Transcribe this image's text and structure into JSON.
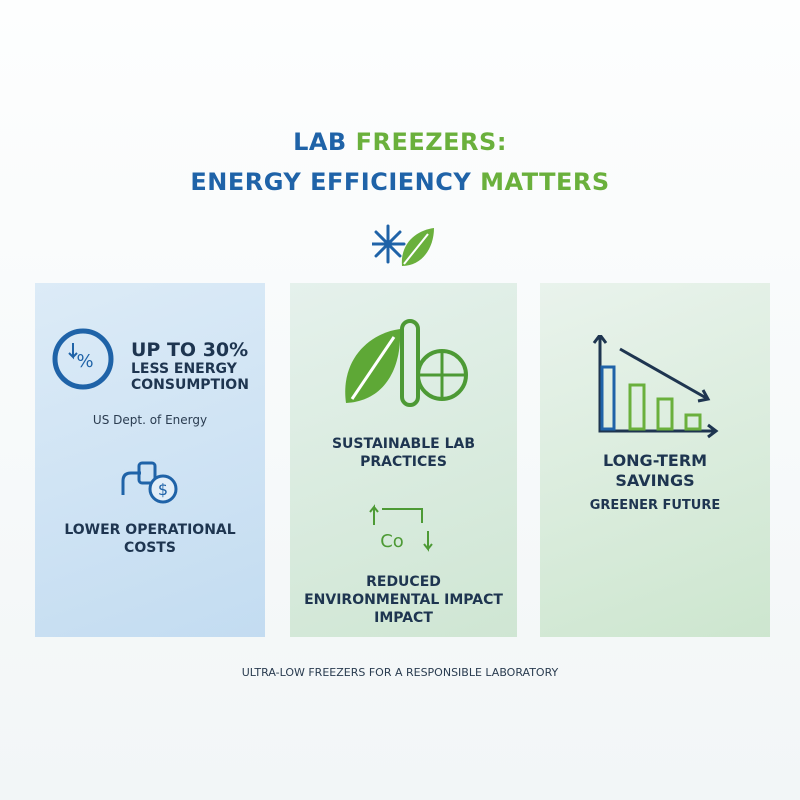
{
  "header": {
    "title_line1": [
      "LAB",
      "FREEZERS:"
    ],
    "title_line2": [
      "ENERGY EFFICIENCY",
      "MATTERS"
    ]
  },
  "panels": [
    {
      "icon_text": "%",
      "headline": [
        "UP TO 30%",
        "LESS ENERGY",
        "CONSUMPTION"
      ],
      "source": "US Dept. of Energy",
      "icon2_text": "$",
      "caption": [
        "LOWER OPERATIONAL",
        "COSTS"
      ]
    },
    {
      "headline": [
        "SUSTAINABLE LAB",
        "PRACTICES"
      ],
      "icon2_text": "Co",
      "caption": [
        "REDUCED",
        "ENVIRONMENTAL IMPACT",
        "IMPACT"
      ]
    },
    {
      "headline": [
        "LONG-TERM",
        "SAVINGS"
      ],
      "caption": [
        "GREENER FUTURE"
      ]
    }
  ],
  "footer": "ULTRA-LOW FREEZERS FOR A RESPONSIBLE LABORATORY"
}
